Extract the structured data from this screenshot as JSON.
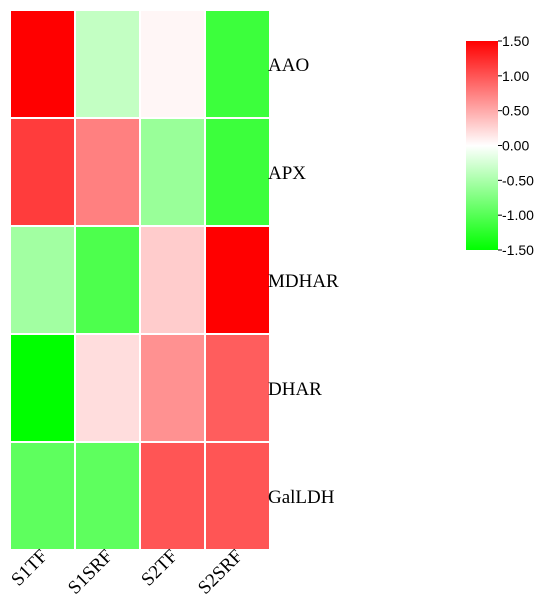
{
  "chart_data": {
    "type": "heatmap",
    "rows": [
      "AAO",
      "APX",
      "MDHAR",
      "DHAR",
      "GalLDH"
    ],
    "columns": [
      "S1TF",
      "S1SRF",
      "S2TF",
      "S2SRF"
    ],
    "values": [
      [
        1.5,
        -0.35,
        0.05,
        -1.15
      ],
      [
        1.15,
        0.75,
        -0.6,
        -1.15
      ],
      [
        -0.55,
        -1.05,
        0.3,
        1.5
      ],
      [
        -1.5,
        0.2,
        0.65,
        0.95
      ],
      [
        -0.95,
        -0.95,
        1.0,
        1.0
      ]
    ],
    "colorbar": {
      "min": -1.5,
      "max": 1.5,
      "ticks": [
        "1.50",
        "1.00",
        "0.50",
        "0.00",
        "-0.50",
        "-1.00",
        "-1.50"
      ],
      "colors": {
        "low": "#00ff00",
        "mid": "#ffffff",
        "high": "#ff0000"
      }
    },
    "title": "",
    "xlabel": "",
    "ylabel": ""
  }
}
